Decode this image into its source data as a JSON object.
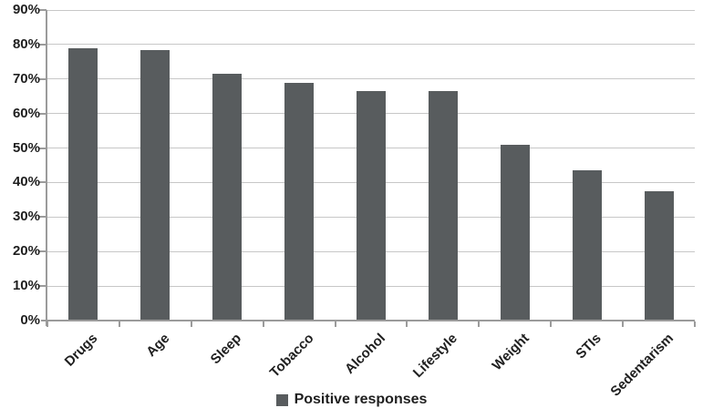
{
  "chart_data": {
    "type": "bar",
    "title": "",
    "xlabel": "",
    "ylabel": "",
    "categories": [
      "Drugs",
      "Age",
      "Sleep",
      "Tobacco",
      "Alcohol",
      "Lifestyle",
      "Weight",
      "STIs",
      "Sedentarism"
    ],
    "values": [
      79,
      78.5,
      71.5,
      69,
      66.5,
      66.5,
      51,
      43.5,
      37.5
    ],
    "series_name": "Positive responses",
    "y_ticks": [
      "0%",
      "10%",
      "20%",
      "30%",
      "40%",
      "50%",
      "60%",
      "70%",
      "80%",
      "90%"
    ],
    "ylim": [
      0,
      90
    ],
    "grid": true,
    "legend_position": "bottom",
    "bar_color": "#585c5e",
    "gridline_color": "#c7c7c7",
    "axis_color": "#9b9b9b",
    "text_color": "#1f1f1f"
  },
  "legend": {
    "label": "Positive responses",
    "marker_color": "#585c5e"
  }
}
